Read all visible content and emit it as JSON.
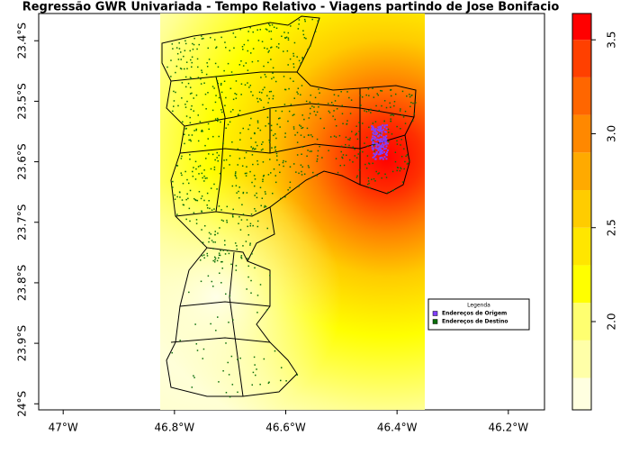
{
  "chart_data": {
    "type": "map",
    "title": "Regressão GWR Univariada - Tempo Relativo - Viagens partindo de Jose Bonifacio",
    "xlim": [
      -47.044,
      -46.135
    ],
    "xticks": [
      {
        "value": -47,
        "label": "47°W"
      },
      {
        "value": -46.8,
        "label": "46.8°W"
      },
      {
        "value": -46.6,
        "label": "46.6°W"
      },
      {
        "value": -46.4,
        "label": "46.4°W"
      },
      {
        "value": -46.2,
        "label": "46.2°W"
      }
    ],
    "ylim": [
      -24.01,
      -23.355
    ],
    "yticks": [
      {
        "value": -23.4,
        "label": "23.4°S"
      },
      {
        "value": -23.5,
        "label": "23.5°S"
      },
      {
        "value": -23.6,
        "label": "23.6°S"
      },
      {
        "value": -23.7,
        "label": "23.7°S"
      },
      {
        "value": -23.8,
        "label": "23.8°S"
      },
      {
        "value": -23.9,
        "label": "23.9°S"
      },
      {
        "value": -24,
        "label": "24°S"
      }
    ],
    "colorbar": {
      "lim": [
        1.53,
        3.64
      ],
      "ticks": [
        {
          "value": 2,
          "label": "2.0"
        },
        2.5,
        {
          "value": 3,
          "label": "3.0"
        },
        3.5
      ],
      "breaks": [
        1.53,
        1.7,
        1.9,
        2.1,
        2.3,
        2.5,
        2.7,
        2.9,
        3.1,
        3.3,
        3.5,
        3.64
      ],
      "colors": [
        "#ffffe0",
        "#ffffa8",
        "#ffff70",
        "#ffff00",
        "#ffe600",
        "#ffcc00",
        "#ffaa00",
        "#ff8800",
        "#ff6600",
        "#ff4000",
        "#ff0000"
      ]
    },
    "legend": {
      "title": "Legenda",
      "entries": [
        {
          "name": "Endereços de Origem",
          "color": "#8040ff"
        },
        {
          "name": "Endereços de Destino",
          "color": "#0a6e0a"
        }
      ]
    }
  }
}
